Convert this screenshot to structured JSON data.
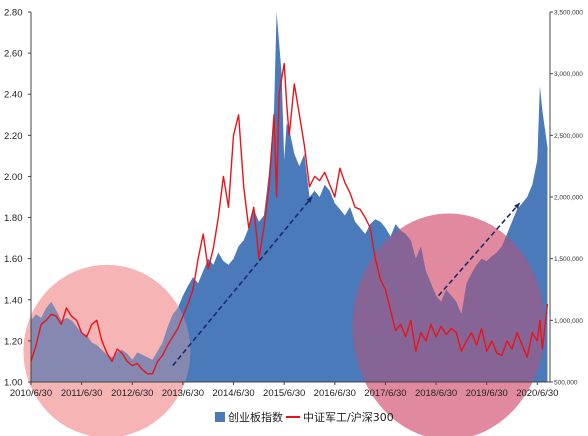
{
  "chart_data": {
    "type": "area",
    "categories": [
      "2010/6/30",
      "2011/6/30",
      "2012/6/30",
      "2013/6/30",
      "2014/6/30",
      "2015/6/30",
      "2016/6/30",
      "2017/6/30",
      "2018/6/30",
      "2019/6/30",
      "2020/6/30"
    ],
    "x_range": [
      2010.5,
      2020.75
    ],
    "left_axis": {
      "ticks": [
        "1.00",
        "1.20",
        "1.40",
        "1.60",
        "1.80",
        "2.00",
        "2.20",
        "2.40",
        "2.60",
        "2.80"
      ],
      "ylim": [
        1.0,
        2.8
      ]
    },
    "right_axis": {
      "ticks": [
        "500,000",
        "1,000,000",
        "1,500,000",
        "2,000,000",
        "2,500,000",
        "3,000,000",
        "3,500,000"
      ],
      "ylim": [
        500000,
        3500000
      ]
    },
    "series": [
      {
        "name": "创业板指数",
        "type": "area",
        "axis": "right",
        "color": "#4a7ab9",
        "x": [
          2010.5,
          2010.6,
          2010.7,
          2010.8,
          2010.9,
          2011.0,
          2011.1,
          2011.2,
          2011.3,
          2011.4,
          2011.5,
          2011.6,
          2011.7,
          2011.8,
          2011.9,
          2012.0,
          2012.1,
          2012.2,
          2012.3,
          2012.4,
          2012.5,
          2012.6,
          2012.7,
          2012.8,
          2012.9,
          2013.0,
          2013.1,
          2013.2,
          2013.3,
          2013.4,
          2013.5,
          2013.6,
          2013.7,
          2013.8,
          2013.9,
          2014.0,
          2014.1,
          2014.2,
          2014.3,
          2014.4,
          2014.5,
          2014.6,
          2014.7,
          2014.8,
          2014.9,
          2015.0,
          2015.1,
          2015.2,
          2015.3,
          2015.35,
          2015.45,
          2015.5,
          2015.55,
          2015.6,
          2015.7,
          2015.8,
          2015.9,
          2016.0,
          2016.1,
          2016.2,
          2016.3,
          2016.4,
          2016.5,
          2016.6,
          2016.7,
          2016.8,
          2016.9,
          2017.0,
          2017.1,
          2017.2,
          2017.3,
          2017.4,
          2017.5,
          2017.6,
          2017.7,
          2017.8,
          2017.9,
          2018.0,
          2018.1,
          2018.2,
          2018.3,
          2018.4,
          2018.5,
          2018.6,
          2018.7,
          2018.8,
          2018.9,
          2019.0,
          2019.1,
          2019.2,
          2019.3,
          2019.4,
          2019.5,
          2019.6,
          2019.7,
          2019.8,
          2019.9,
          2020.0,
          2020.1,
          2020.2,
          2020.3,
          2020.4,
          2020.5,
          2020.55,
          2020.6,
          2020.7
        ],
        "values": [
          1000000,
          1050000,
          1020000,
          1100000,
          1150000,
          1080000,
          1000000,
          1020000,
          1000000,
          950000,
          900000,
          880000,
          820000,
          800000,
          760000,
          720000,
          700000,
          740000,
          760000,
          730000,
          680000,
          740000,
          720000,
          700000,
          680000,
          750000,
          820000,
          950000,
          1050000,
          1100000,
          1200000,
          1280000,
          1350000,
          1300000,
          1400000,
          1500000,
          1450000,
          1550000,
          1480000,
          1450000,
          1500000,
          1600000,
          1650000,
          1750000,
          1900000,
          1800000,
          1850000,
          2200000,
          2700000,
          3500000,
          3000000,
          2300000,
          2600000,
          2550000,
          2350000,
          2250000,
          2350000,
          2000000,
          2050000,
          2000000,
          2100000,
          2050000,
          1950000,
          1900000,
          1850000,
          1920000,
          1800000,
          1750000,
          1700000,
          1780000,
          1820000,
          1800000,
          1750000,
          1680000,
          1780000,
          1730000,
          1700000,
          1650000,
          1500000,
          1600000,
          1400000,
          1300000,
          1200000,
          1150000,
          1250000,
          1200000,
          1150000,
          1050000,
          1300000,
          1380000,
          1450000,
          1500000,
          1480000,
          1520000,
          1550000,
          1600000,
          1700000,
          1800000,
          1900000,
          1950000,
          2000000,
          2100000,
          2300000,
          2900000,
          2700000,
          2400000
        ]
      },
      {
        "name": "中证军工/沪深300",
        "type": "line",
        "axis": "left",
        "color": "#e8141a",
        "x": [
          2010.5,
          2010.6,
          2010.7,
          2010.8,
          2010.9,
          2011.0,
          2011.1,
          2011.2,
          2011.3,
          2011.4,
          2011.5,
          2011.6,
          2011.7,
          2011.8,
          2011.9,
          2012.0,
          2012.1,
          2012.2,
          2012.3,
          2012.4,
          2012.5,
          2012.6,
          2012.7,
          2012.8,
          2012.9,
          2013.0,
          2013.1,
          2013.2,
          2013.3,
          2013.4,
          2013.5,
          2013.6,
          2013.7,
          2013.8,
          2013.9,
          2014.0,
          2014.1,
          2014.2,
          2014.3,
          2014.4,
          2014.5,
          2014.6,
          2014.7,
          2014.8,
          2014.9,
          2015.0,
          2015.1,
          2015.2,
          2015.3,
          2015.35,
          2015.4,
          2015.5,
          2015.55,
          2015.6,
          2015.7,
          2015.8,
          2015.9,
          2016.0,
          2016.1,
          2016.2,
          2016.3,
          2016.4,
          2016.5,
          2016.6,
          2016.7,
          2016.8,
          2016.9,
          2017.0,
          2017.1,
          2017.2,
          2017.3,
          2017.4,
          2017.5,
          2017.6,
          2017.7,
          2017.8,
          2017.9,
          2018.0,
          2018.1,
          2018.2,
          2018.3,
          2018.4,
          2018.5,
          2018.6,
          2018.7,
          2018.8,
          2018.9,
          2019.0,
          2019.1,
          2019.2,
          2019.3,
          2019.4,
          2019.5,
          2019.6,
          2019.7,
          2019.8,
          2019.9,
          2020.0,
          2020.1,
          2020.2,
          2020.3,
          2020.4,
          2020.5,
          2020.55,
          2020.6,
          2020.7
        ],
        "values": [
          1.1,
          1.18,
          1.28,
          1.3,
          1.33,
          1.32,
          1.28,
          1.36,
          1.32,
          1.3,
          1.24,
          1.22,
          1.28,
          1.3,
          1.2,
          1.14,
          1.1,
          1.16,
          1.14,
          1.1,
          1.08,
          1.09,
          1.06,
          1.04,
          1.04,
          1.1,
          1.13,
          1.18,
          1.22,
          1.26,
          1.32,
          1.38,
          1.45,
          1.6,
          1.72,
          1.55,
          1.65,
          1.8,
          2.0,
          1.85,
          2.2,
          2.3,
          1.95,
          1.75,
          1.85,
          1.6,
          1.75,
          1.95,
          2.3,
          1.9,
          2.4,
          2.55,
          2.35,
          2.2,
          2.45,
          2.3,
          2.15,
          1.95,
          2.0,
          1.98,
          2.02,
          1.96,
          1.9,
          2.04,
          1.97,
          1.92,
          1.85,
          1.84,
          1.8,
          1.75,
          1.6,
          1.5,
          1.45,
          1.35,
          1.25,
          1.28,
          1.22,
          1.3,
          1.15,
          1.24,
          1.2,
          1.28,
          1.22,
          1.27,
          1.23,
          1.26,
          1.24,
          1.15,
          1.2,
          1.24,
          1.18,
          1.26,
          1.15,
          1.2,
          1.14,
          1.13,
          1.2,
          1.16,
          1.24,
          1.18,
          1.12,
          1.24,
          1.2,
          1.3,
          1.16,
          1.38
        ]
      }
    ],
    "annotations": [
      {
        "type": "ellipse",
        "color": "#f4a6a6",
        "center": [
          2012.0,
          1.15
        ],
        "rx_years": 1.65,
        "ry": 0.42
      },
      {
        "type": "ellipse",
        "color": "#d04a6a",
        "center": [
          2018.75,
          1.27
        ],
        "rx_years": 1.9,
        "ry": 0.55
      },
      {
        "type": "arrow",
        "color": "#1a2a6a",
        "from": [
          2013.3,
          1.08
        ],
        "to": [
          2016.05,
          1.9
        ]
      },
      {
        "type": "arrow",
        "color": "#1a2a6a",
        "from": [
          2018.55,
          1.42
        ],
        "to": [
          2020.15,
          1.87
        ]
      }
    ],
    "legend": {
      "position": "bottom",
      "entries": [
        "创业板指数",
        "中证军工/沪深300"
      ]
    },
    "grid": false
  }
}
